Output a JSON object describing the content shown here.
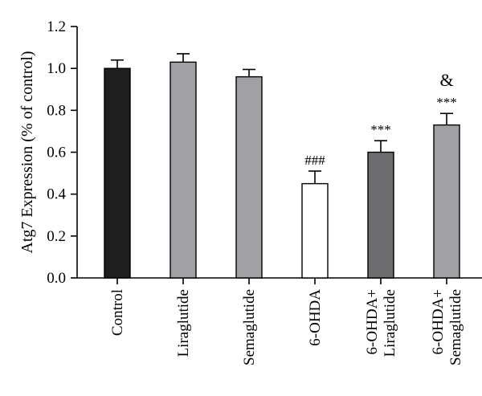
{
  "chart_data": {
    "type": "bar",
    "ylabel": "Atg7 Expression (% of control)",
    "ylim": [
      0,
      1.2
    ],
    "yticks": [
      "0.0",
      "0.2",
      "0.4",
      "0.6",
      "0.8",
      "1.0",
      "1.2"
    ],
    "grid": false,
    "legend": "none",
    "categories": [
      [
        "Control"
      ],
      [
        "Liraglutide"
      ],
      [
        "Semaglutide"
      ],
      [
        "6-OHDA"
      ],
      [
        "6-OHDA+",
        "Liraglutide"
      ],
      [
        "6-OHDA+",
        "Semaglutide"
      ]
    ],
    "values": [
      1.0,
      1.03,
      0.96,
      0.45,
      0.6,
      0.73
    ],
    "errors": [
      0.04,
      0.04,
      0.035,
      0.06,
      0.055,
      0.055
    ],
    "colors": [
      "#1e1e1e",
      "#a0a0a5",
      "#a0a0a5",
      "#ffffff",
      "#6d6d70",
      "#a0a0a5"
    ],
    "annotations": [
      [
        "",
        "",
        "",
        "###",
        "***",
        "***"
      ],
      [
        "",
        "",
        "",
        "",
        "",
        "&"
      ]
    ]
  }
}
